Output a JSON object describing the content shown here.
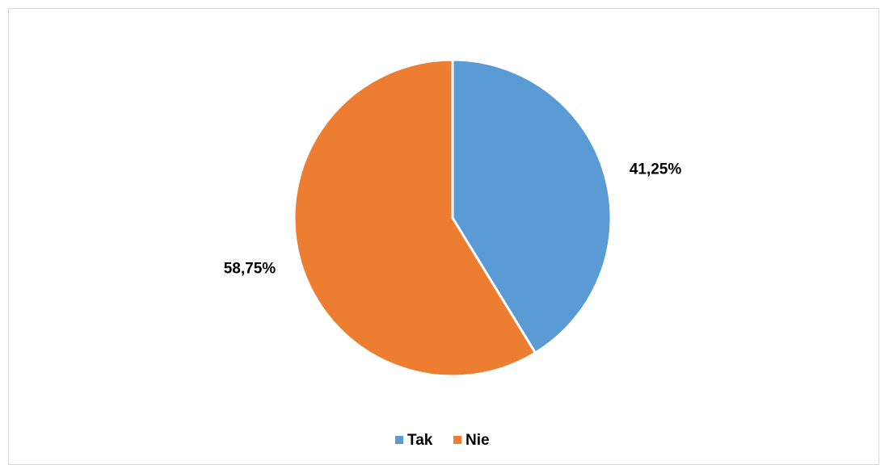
{
  "chart_data": {
    "type": "pie",
    "title": "",
    "categories": [
      "Tak",
      "Nie"
    ],
    "values": [
      41.25,
      58.75
    ],
    "labels": [
      "41,25%",
      "58,75%"
    ],
    "colors": [
      "#5b9bd5",
      "#ed7d31"
    ],
    "start_angle_deg": 0,
    "direction": "clockwise",
    "legend_position": "bottom"
  }
}
